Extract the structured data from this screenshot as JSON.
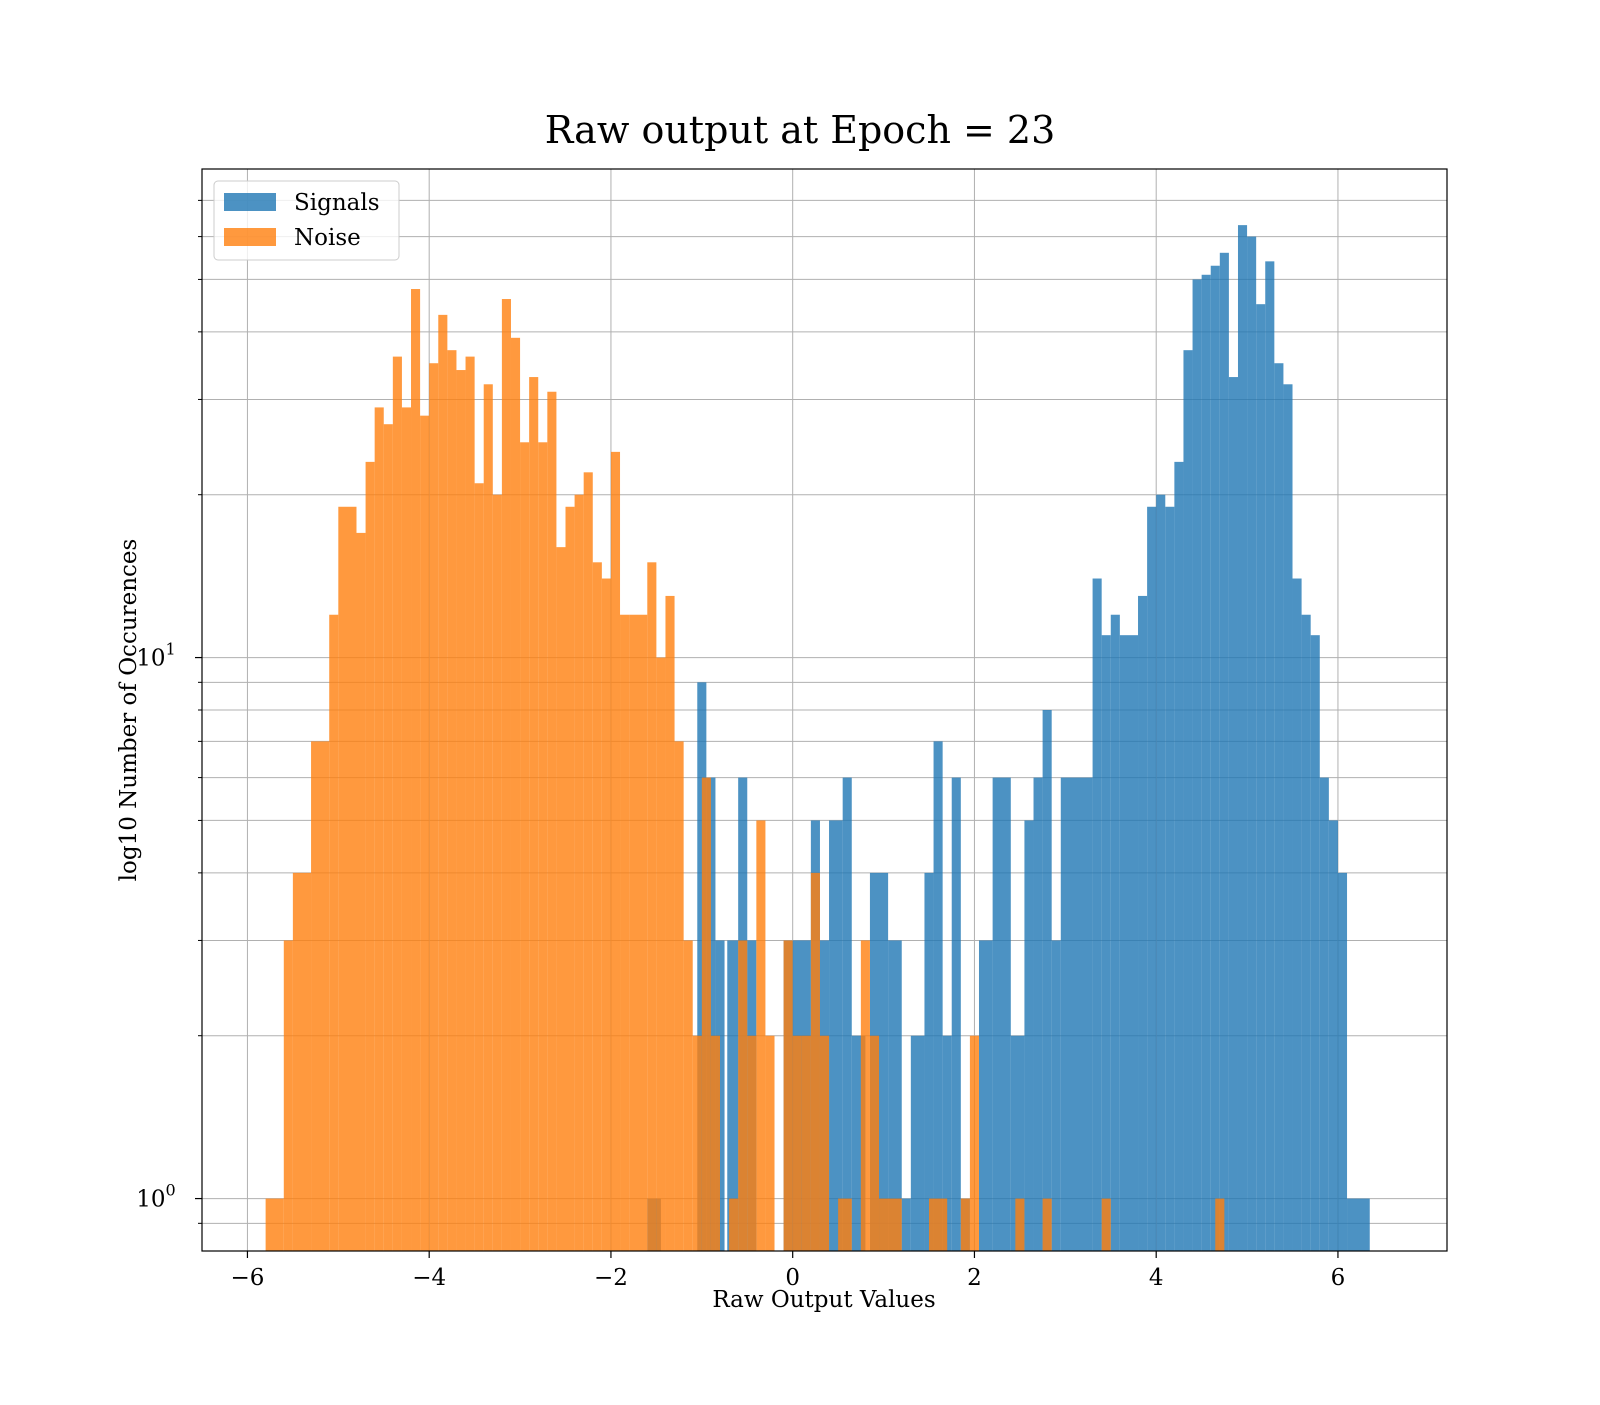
{
  "chart_data": {
    "type": "bar",
    "subtype": "histogram",
    "title": "Raw output at Epoch = 23",
    "xlabel": "Raw Output Values",
    "ylabel": "log10 Number of Occurences",
    "xlim": [
      -6.5,
      7.2
    ],
    "ylim": [
      0.8,
      80
    ],
    "yscale": "log",
    "grid": true,
    "legend_position": "top-left",
    "x_ticks": [
      {
        "value": -6,
        "label": "−6"
      },
      {
        "value": -4,
        "label": "−4"
      },
      {
        "value": -2,
        "label": "−2"
      },
      {
        "value": 0,
        "label": "0"
      },
      {
        "value": 2,
        "label": "2"
      },
      {
        "value": 4,
        "label": "4"
      },
      {
        "value": 6,
        "label": "6"
      }
    ],
    "y_ticks": [
      {
        "value": 1,
        "base": "10",
        "exp": "0"
      },
      {
        "value": 10,
        "base": "10",
        "exp": "1"
      }
    ],
    "y_minor_ticks": [
      0.9,
      2,
      3,
      4,
      5,
      6,
      7,
      8,
      9,
      20,
      30,
      40,
      50,
      60,
      70
    ],
    "series": [
      {
        "name": "Signals",
        "color": "#1f77b4",
        "bins": [
          [
            -1.6,
            -1.45,
            1
          ],
          [
            -1.05,
            -0.95,
            9
          ],
          [
            -0.95,
            -0.85,
            6
          ],
          [
            -0.85,
            -0.75,
            3
          ],
          [
            -0.72,
            -0.6,
            3
          ],
          [
            -0.6,
            -0.5,
            6
          ],
          [
            -0.5,
            -0.4,
            3
          ],
          [
            -0.1,
            0.0,
            3
          ],
          [
            0.0,
            0.2,
            3
          ],
          [
            0.2,
            0.3,
            5
          ],
          [
            0.3,
            0.4,
            3
          ],
          [
            0.4,
            0.55,
            5
          ],
          [
            0.55,
            0.65,
            6
          ],
          [
            0.65,
            0.8,
            2
          ],
          [
            0.85,
            1.05,
            4
          ],
          [
            1.05,
            1.2,
            3
          ],
          [
            1.2,
            1.3,
            1
          ],
          [
            1.3,
            1.45,
            2
          ],
          [
            1.45,
            1.55,
            4
          ],
          [
            1.55,
            1.65,
            7
          ],
          [
            1.65,
            1.75,
            2
          ],
          [
            1.75,
            1.85,
            6
          ],
          [
            1.85,
            1.95,
            1
          ],
          [
            2.05,
            2.2,
            3
          ],
          [
            2.2,
            2.4,
            6
          ],
          [
            2.4,
            2.55,
            2
          ],
          [
            2.55,
            2.65,
            5
          ],
          [
            2.65,
            2.75,
            6
          ],
          [
            2.75,
            2.85,
            8
          ],
          [
            2.85,
            2.95,
            3
          ],
          [
            2.95,
            3.3,
            6
          ],
          [
            3.3,
            3.4,
            14
          ],
          [
            3.4,
            3.5,
            11
          ],
          [
            3.5,
            3.6,
            12
          ],
          [
            3.6,
            3.8,
            11
          ],
          [
            3.8,
            3.9,
            13
          ],
          [
            3.9,
            4.0,
            19
          ],
          [
            4.0,
            4.1,
            20
          ],
          [
            4.1,
            4.2,
            19
          ],
          [
            4.2,
            4.3,
            23
          ],
          [
            4.3,
            4.4,
            37
          ],
          [
            4.4,
            4.5,
            50
          ],
          [
            4.5,
            4.6,
            51
          ],
          [
            4.6,
            4.7,
            53
          ],
          [
            4.7,
            4.8,
            56
          ],
          [
            4.8,
            4.9,
            33
          ],
          [
            4.9,
            5.0,
            63
          ],
          [
            5.0,
            5.1,
            60
          ],
          [
            5.1,
            5.2,
            45
          ],
          [
            5.2,
            5.3,
            54
          ],
          [
            5.3,
            5.4,
            35
          ],
          [
            5.4,
            5.5,
            32
          ],
          [
            5.5,
            5.6,
            14
          ],
          [
            5.6,
            5.7,
            12
          ],
          [
            5.7,
            5.8,
            11
          ],
          [
            5.8,
            5.9,
            6
          ],
          [
            5.9,
            6.0,
            5
          ],
          [
            6.0,
            6.1,
            4
          ],
          [
            6.1,
            6.35,
            1
          ]
        ]
      },
      {
        "name": "Noise",
        "color": "#ff7f0e",
        "bins": [
          [
            -5.8,
            -5.6,
            1
          ],
          [
            -5.6,
            -5.5,
            3
          ],
          [
            -5.5,
            -5.3,
            4
          ],
          [
            -5.3,
            -5.1,
            7
          ],
          [
            -5.1,
            -5.0,
            12
          ],
          [
            -5.0,
            -4.8,
            19
          ],
          [
            -4.8,
            -4.7,
            17
          ],
          [
            -4.7,
            -4.6,
            23
          ],
          [
            -4.6,
            -4.5,
            29
          ],
          [
            -4.5,
            -4.4,
            27
          ],
          [
            -4.4,
            -4.3,
            36
          ],
          [
            -4.3,
            -4.2,
            29
          ],
          [
            -4.2,
            -4.1,
            48
          ],
          [
            -4.1,
            -4.0,
            28
          ],
          [
            -4.0,
            -3.9,
            35
          ],
          [
            -3.9,
            -3.8,
            43
          ],
          [
            -3.8,
            -3.7,
            37
          ],
          [
            -3.7,
            -3.6,
            34
          ],
          [
            -3.6,
            -3.5,
            36
          ],
          [
            -3.5,
            -3.4,
            21
          ],
          [
            -3.4,
            -3.3,
            32
          ],
          [
            -3.3,
            -3.2,
            20
          ],
          [
            -3.2,
            -3.1,
            46
          ],
          [
            -3.1,
            -3.0,
            39
          ],
          [
            -3.0,
            -2.9,
            25
          ],
          [
            -2.9,
            -2.8,
            33
          ],
          [
            -2.8,
            -2.7,
            25
          ],
          [
            -2.7,
            -2.6,
            31
          ],
          [
            -2.6,
            -2.5,
            16
          ],
          [
            -2.5,
            -2.4,
            19
          ],
          [
            -2.4,
            -2.3,
            20
          ],
          [
            -2.3,
            -2.2,
            22
          ],
          [
            -2.2,
            -2.1,
            15
          ],
          [
            -2.1,
            -2.0,
            14
          ],
          [
            -2.0,
            -1.9,
            24
          ],
          [
            -1.9,
            -1.8,
            12
          ],
          [
            -1.8,
            -1.6,
            12
          ],
          [
            -1.6,
            -1.5,
            15
          ],
          [
            -1.5,
            -1.4,
            10
          ],
          [
            -1.4,
            -1.3,
            13
          ],
          [
            -1.3,
            -1.2,
            7
          ],
          [
            -1.2,
            -1.1,
            3
          ],
          [
            -1.1,
            -1.0,
            2
          ],
          [
            -1.0,
            -0.9,
            6
          ],
          [
            -0.9,
            -0.8,
            2
          ],
          [
            -0.7,
            -0.6,
            1
          ],
          [
            -0.6,
            -0.5,
            3
          ],
          [
            -0.5,
            -0.4,
            2
          ],
          [
            -0.4,
            -0.3,
            5
          ],
          [
            -0.3,
            -0.2,
            2
          ],
          [
            -0.1,
            0.0,
            3
          ],
          [
            0.0,
            0.1,
            2
          ],
          [
            0.1,
            0.2,
            2
          ],
          [
            0.2,
            0.3,
            4
          ],
          [
            0.3,
            0.4,
            2
          ],
          [
            0.5,
            0.65,
            1
          ],
          [
            0.75,
            0.85,
            3
          ],
          [
            0.85,
            0.95,
            2
          ],
          [
            0.95,
            1.2,
            1
          ],
          [
            1.5,
            1.7,
            1
          ],
          [
            1.85,
            1.95,
            1
          ],
          [
            1.95,
            2.05,
            2
          ],
          [
            2.45,
            2.55,
            1
          ],
          [
            2.75,
            2.85,
            1
          ],
          [
            3.4,
            3.5,
            1
          ],
          [
            4.65,
            4.75,
            1
          ]
        ]
      }
    ]
  }
}
